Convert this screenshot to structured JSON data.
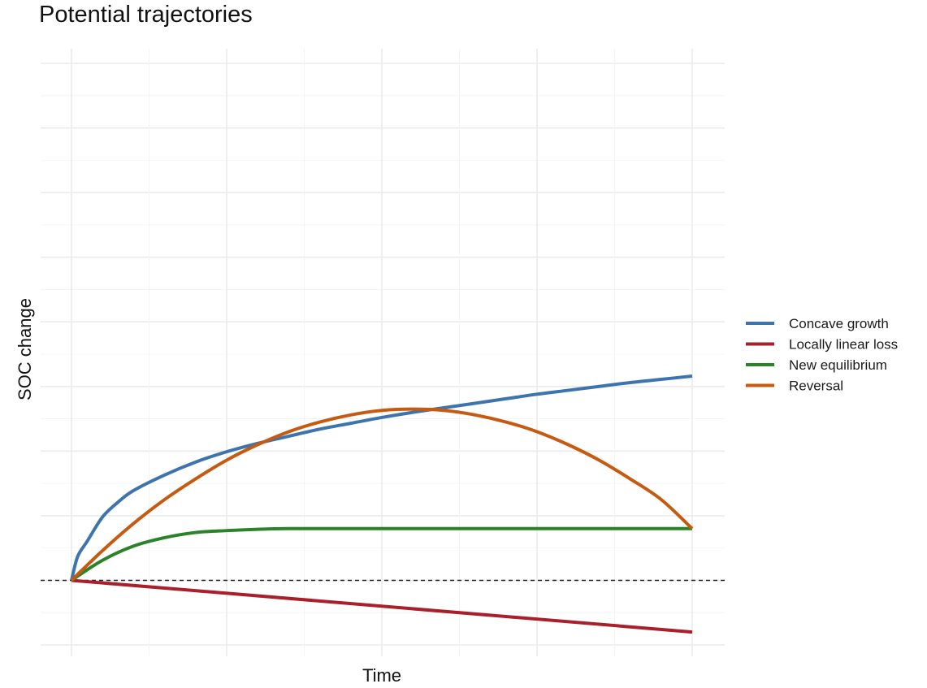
{
  "chart_data": {
    "type": "line",
    "title": "Potential trajectories",
    "xlabel": "Time",
    "ylabel": "SOC change",
    "xlim": [
      0,
      10
    ],
    "ylim": [
      -1.0,
      8.0
    ],
    "grid": true,
    "legend_position": "right",
    "reference_line": {
      "y": 0,
      "style": "dashed",
      "color": "#222222"
    },
    "series": [
      {
        "name": "Concave growth",
        "color": "#3E74AE",
        "x": [
          0,
          0.1,
          0.25,
          0.5,
          0.75,
          1,
          1.5,
          2,
          2.5,
          3,
          3.5,
          4,
          4.5,
          5,
          5.5,
          6,
          6.5,
          7,
          7.5,
          8,
          8.5,
          9,
          9.5,
          10
        ],
        "y": [
          0,
          0.37,
          0.6,
          0.98,
          1.21,
          1.39,
          1.63,
          1.83,
          1.99,
          2.12,
          2.23,
          2.34,
          2.43,
          2.52,
          2.6,
          2.67,
          2.74,
          2.81,
          2.88,
          2.94,
          3.0,
          3.06,
          3.11,
          3.16
        ]
      },
      {
        "name": "Locally linear loss",
        "color": "#A91F2A",
        "x": [
          0,
          10
        ],
        "y": [
          0,
          -0.8
        ]
      },
      {
        "name": "New equilibrium",
        "color": "#2A8329",
        "x": [
          0,
          0.5,
          1,
          1.5,
          2,
          2.5,
          3,
          3.5,
          4,
          5,
          6,
          7,
          8,
          9,
          10
        ],
        "y": [
          0,
          0.31,
          0.53,
          0.66,
          0.74,
          0.77,
          0.79,
          0.8,
          0.8,
          0.8,
          0.8,
          0.8,
          0.8,
          0.8,
          0.8
        ]
      },
      {
        "name": "Reversal",
        "color": "#C75A11",
        "x": [
          0,
          0.5,
          1,
          1.5,
          2,
          2.5,
          3,
          3.5,
          4,
          4.5,
          5,
          5.5,
          6,
          6.5,
          7,
          7.5,
          8,
          8.5,
          9,
          9.5,
          10
        ],
        "y": [
          0,
          0.46,
          0.88,
          1.25,
          1.57,
          1.86,
          2.1,
          2.3,
          2.45,
          2.56,
          2.63,
          2.65,
          2.63,
          2.56,
          2.45,
          2.3,
          2.1,
          1.86,
          1.57,
          1.25,
          0.8
        ]
      }
    ]
  }
}
